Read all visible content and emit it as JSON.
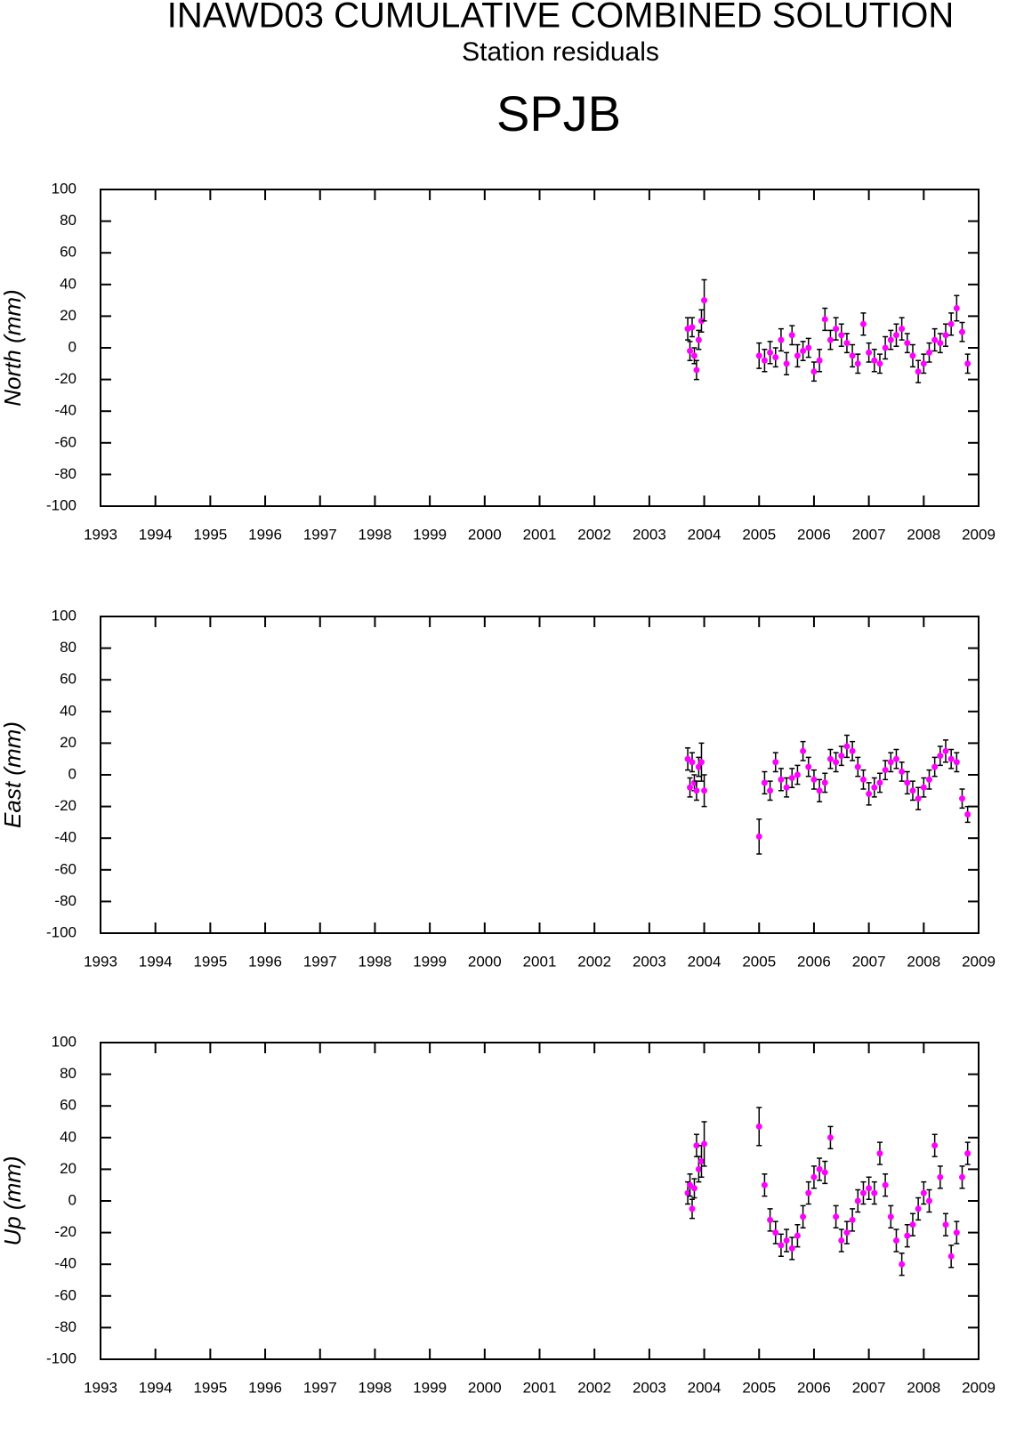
{
  "header": {
    "title": "INAWD03 CUMULATIVE COMBINED SOLUTION",
    "subtitle": "Station residuals",
    "station": "SPJB"
  },
  "chart_data": [
    {
      "type": "scatter",
      "ylabel": "North (mm)",
      "color": "#ff00ff",
      "error_color": "#000000",
      "xlim": [
        1993,
        2009
      ],
      "xticks": [
        1993,
        1994,
        1995,
        1996,
        1997,
        1998,
        1999,
        2000,
        2001,
        2002,
        2003,
        2004,
        2005,
        2006,
        2007,
        2008,
        2009
      ],
      "ylim": [
        -100,
        100
      ],
      "yticks": [
        -100,
        -80,
        -60,
        -40,
        -20,
        0,
        20,
        40,
        60,
        80,
        100
      ],
      "x": [
        2003.7,
        2003.74,
        2003.78,
        2003.82,
        2003.86,
        2003.9,
        2003.95,
        2004.0,
        2005.0,
        2005.1,
        2005.2,
        2005.3,
        2005.4,
        2005.5,
        2005.6,
        2005.7,
        2005.8,
        2005.9,
        2006.0,
        2006.1,
        2006.2,
        2006.3,
        2006.4,
        2006.5,
        2006.6,
        2006.7,
        2006.8,
        2006.9,
        2007.0,
        2007.1,
        2007.2,
        2007.3,
        2007.4,
        2007.5,
        2007.6,
        2007.7,
        2007.8,
        2007.9,
        2008.0,
        2008.1,
        2008.2,
        2008.3,
        2008.4,
        2008.5,
        2008.6,
        2008.7,
        2008.8
      ],
      "values": [
        12,
        -2,
        13,
        -5,
        -14,
        5,
        17,
        30,
        -5,
        -8,
        -3,
        -6,
        5,
        -10,
        8,
        -5,
        -2,
        0,
        -15,
        -8,
        18,
        5,
        12,
        8,
        3,
        -5,
        -10,
        15,
        -3,
        -8,
        -10,
        0,
        5,
        8,
        12,
        3,
        -5,
        -15,
        -10,
        -3,
        5,
        3,
        8,
        15,
        25,
        10,
        -10
      ],
      "errors": [
        7,
        6,
        6,
        5,
        6,
        6,
        7,
        13,
        8,
        7,
        7,
        6,
        7,
        7,
        6,
        7,
        6,
        6,
        6,
        7,
        7,
        6,
        7,
        7,
        6,
        7,
        6,
        7,
        6,
        7,
        6,
        7,
        6,
        7,
        7,
        6,
        7,
        7,
        6,
        6,
        7,
        6,
        7,
        7,
        8,
        6,
        6
      ]
    },
    {
      "type": "scatter",
      "ylabel": "East (mm)",
      "color": "#ff00ff",
      "error_color": "#000000",
      "xlim": [
        1993,
        2009
      ],
      "xticks": [
        1993,
        1994,
        1995,
        1996,
        1997,
        1998,
        1999,
        2000,
        2001,
        2002,
        2003,
        2004,
        2005,
        2006,
        2007,
        2008,
        2009
      ],
      "ylim": [
        -100,
        100
      ],
      "yticks": [
        -100,
        -80,
        -60,
        -40,
        -20,
        0,
        20,
        40,
        60,
        80,
        100
      ],
      "x": [
        2003.7,
        2003.74,
        2003.78,
        2003.82,
        2003.86,
        2003.9,
        2003.95,
        2004.0,
        2005.0,
        2005.1,
        2005.2,
        2005.3,
        2005.4,
        2005.5,
        2005.6,
        2005.7,
        2005.8,
        2005.9,
        2006.0,
        2006.1,
        2006.2,
        2006.3,
        2006.4,
        2006.5,
        2006.6,
        2006.7,
        2006.8,
        2006.9,
        2007.0,
        2007.1,
        2007.2,
        2007.3,
        2007.4,
        2007.5,
        2007.6,
        2007.7,
        2007.8,
        2007.9,
        2008.0,
        2008.1,
        2008.2,
        2008.3,
        2008.4,
        2008.5,
        2008.6,
        2008.7,
        2008.8
      ],
      "values": [
        10,
        -8,
        8,
        -5,
        -10,
        5,
        8,
        -10,
        -39,
        -5,
        -10,
        8,
        -3,
        -8,
        -2,
        0,
        15,
        5,
        -3,
        -10,
        -5,
        10,
        8,
        12,
        18,
        15,
        5,
        -3,
        -12,
        -8,
        -5,
        3,
        8,
        10,
        2,
        -5,
        -10,
        -15,
        -8,
        -3,
        5,
        12,
        15,
        10,
        8,
        -15,
        -25
      ],
      "errors": [
        7,
        6,
        6,
        5,
        6,
        6,
        12,
        10,
        11,
        7,
        6,
        6,
        7,
        6,
        6,
        6,
        6,
        6,
        6,
        7,
        6,
        6,
        6,
        6,
        7,
        6,
        6,
        6,
        7,
        6,
        6,
        6,
        6,
        6,
        6,
        7,
        6,
        7,
        6,
        6,
        6,
        6,
        7,
        6,
        6,
        6,
        5
      ]
    },
    {
      "type": "scatter",
      "ylabel": "Up (mm)",
      "color": "#ff00ff",
      "error_color": "#000000",
      "xlim": [
        1993,
        2009
      ],
      "xticks": [
        1993,
        1994,
        1995,
        1996,
        1997,
        1998,
        1999,
        2000,
        2001,
        2002,
        2003,
        2004,
        2005,
        2006,
        2007,
        2008,
        2009
      ],
      "ylim": [
        -100,
        100
      ],
      "yticks": [
        -100,
        -80,
        -60,
        -40,
        -20,
        0,
        20,
        40,
        60,
        80,
        100
      ],
      "x": [
        2003.7,
        2003.74,
        2003.78,
        2003.82,
        2003.86,
        2003.9,
        2003.95,
        2004.0,
        2005.0,
        2005.1,
        2005.2,
        2005.3,
        2005.4,
        2005.5,
        2005.6,
        2005.7,
        2005.8,
        2005.9,
        2006.0,
        2006.1,
        2006.2,
        2006.3,
        2006.4,
        2006.5,
        2006.6,
        2006.7,
        2006.8,
        2006.9,
        2007.0,
        2007.1,
        2007.2,
        2007.3,
        2007.4,
        2007.5,
        2007.6,
        2007.7,
        2007.8,
        2007.9,
        2008.0,
        2008.1,
        2008.2,
        2008.3,
        2008.4,
        2008.5,
        2008.6,
        2008.7,
        2008.8
      ],
      "values": [
        5,
        10,
        -5,
        8,
        35,
        20,
        25,
        36,
        47,
        10,
        -12,
        -20,
        -28,
        -25,
        -30,
        -22,
        -10,
        5,
        15,
        20,
        18,
        40,
        -10,
        -25,
        -20,
        -12,
        0,
        5,
        8,
        5,
        30,
        10,
        -10,
        -25,
        -40,
        -22,
        -15,
        -5,
        5,
        0,
        35,
        15,
        -15,
        -35,
        -20,
        15,
        30
      ],
      "errors": [
        7,
        7,
        6,
        6,
        7,
        8,
        10,
        14,
        12,
        7,
        7,
        7,
        7,
        7,
        7,
        7,
        7,
        7,
        7,
        7,
        7,
        7,
        7,
        7,
        7,
        7,
        7,
        7,
        7,
        7,
        7,
        7,
        7,
        7,
        7,
        7,
        7,
        7,
        7,
        7,
        7,
        7,
        7,
        7,
        7,
        7,
        7
      ]
    }
  ]
}
